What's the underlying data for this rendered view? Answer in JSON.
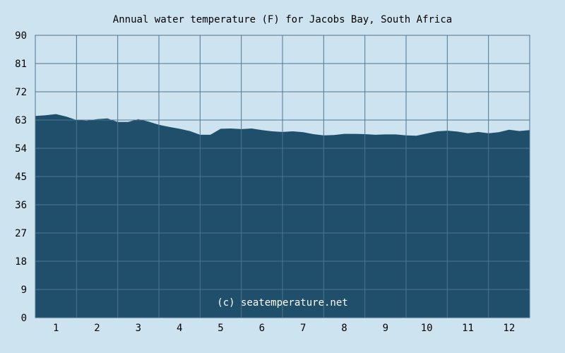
{
  "chart_data": {
    "type": "area",
    "title": "Annual water temperature (F) for Jacobs Bay, South Africa",
    "xlabel": "",
    "ylabel": "",
    "x_ticks": [
      "1",
      "2",
      "3",
      "4",
      "5",
      "6",
      "7",
      "8",
      "9",
      "10",
      "11",
      "12"
    ],
    "xlim": [
      0.5,
      12.5
    ],
    "y_ticks": [
      0,
      9,
      18,
      27,
      36,
      45,
      54,
      63,
      72,
      81,
      90
    ],
    "ylim": [
      0,
      90
    ],
    "grid": true,
    "fill_color": "#1f4f6a",
    "plot_background": "#cde3ef",
    "annotation": "(c) seatemperature.net",
    "series": [
      {
        "x": [
          0.5,
          0.75,
          1.0,
          1.25,
          1.5,
          1.75,
          2.0,
          2.25,
          2.5,
          2.75,
          3.0,
          3.25,
          3.5,
          3.75,
          4.0,
          4.25,
          4.5,
          4.75,
          5.0,
          5.25,
          5.5,
          5.75,
          6.0,
          6.25,
          6.5,
          6.75,
          7.0,
          7.25,
          7.5,
          7.75,
          8.0,
          8.25,
          8.5,
          8.75,
          9.0,
          9.25,
          9.5,
          9.75,
          10.0,
          10.25,
          10.5,
          10.75,
          11.0,
          11.25,
          11.5,
          11.75,
          12.0,
          12.25,
          12.5
        ],
        "values": [
          64.3,
          64.5,
          64.9,
          64.1,
          63.0,
          62.8,
          63.3,
          63.5,
          62.4,
          62.4,
          63.3,
          62.5,
          61.5,
          60.8,
          60.2,
          59.5,
          58.3,
          58.3,
          60.2,
          60.3,
          60.1,
          60.3,
          59.8,
          59.4,
          59.2,
          59.4,
          59.1,
          58.5,
          58.1,
          58.2,
          58.6,
          58.6,
          58.5,
          58.3,
          58.4,
          58.4,
          58.1,
          58.0,
          58.7,
          59.4,
          59.6,
          59.3,
          58.8,
          59.2,
          58.8,
          59.1,
          59.9,
          59.5,
          59.8
        ]
      }
    ]
  }
}
